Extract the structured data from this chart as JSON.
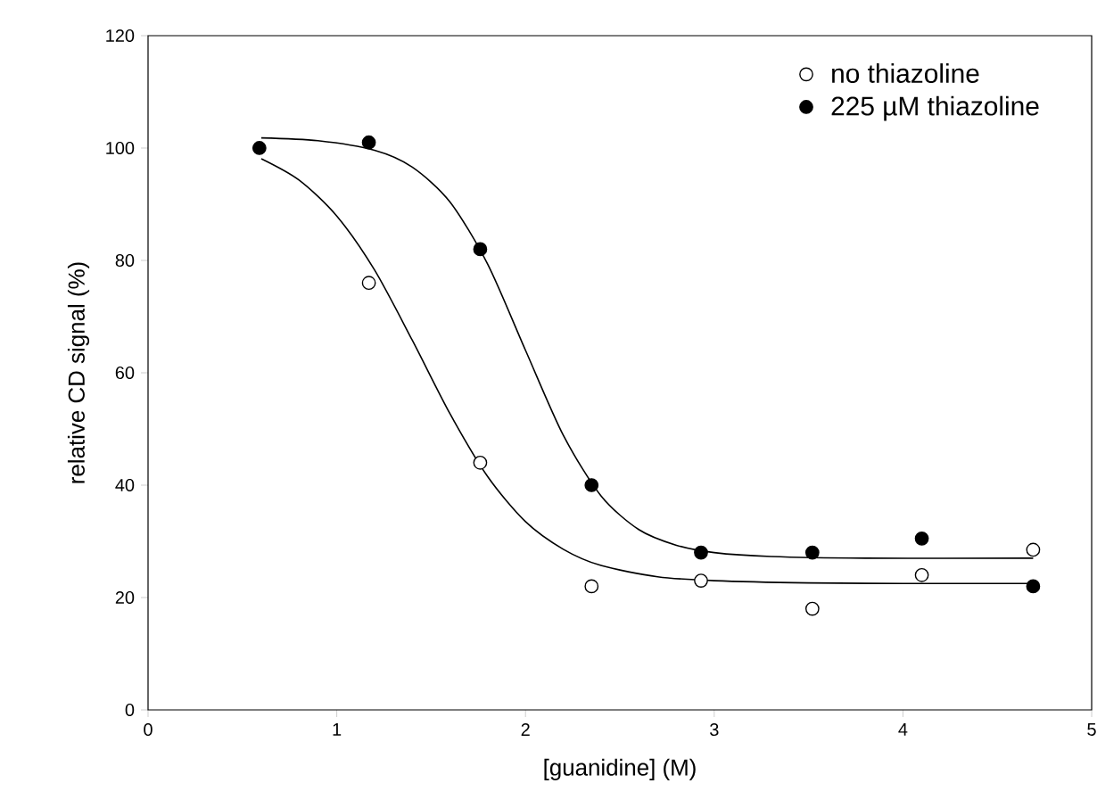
{
  "chart_data": {
    "type": "scatter",
    "xlabel": "[guanidine] (M)",
    "ylabel": "relative CD signal (%)",
    "xlim": [
      0,
      5
    ],
    "ylim": [
      0,
      120
    ],
    "xticks": [
      0,
      1,
      2,
      3,
      4,
      5
    ],
    "yticks": [
      0,
      20,
      40,
      60,
      80,
      100,
      120
    ],
    "grid": false,
    "legend": "top right",
    "series": [
      {
        "name": "no thiazoline",
        "color": "#ffffff",
        "marker": "circle",
        "x": [
          1.17,
          1.76,
          2.35,
          2.93,
          3.52,
          4.1,
          4.69
        ],
        "values": [
          76,
          44,
          22,
          23,
          18,
          24,
          28.5
        ]
      },
      {
        "name": "225 µM thiazoline",
        "color": "#000000",
        "marker": "circle",
        "x": [
          0.59,
          1.17,
          1.76,
          2.35,
          2.93,
          3.52,
          4.1,
          4.69
        ],
        "values": [
          100,
          101,
          82,
          40,
          28,
          28,
          30.5,
          22
        ]
      },
      {
        "type": "line",
        "color": "#000000",
        "marker": "none",
        "x": [
          0.6,
          0.8,
          1.0,
          1.2,
          1.4,
          1.6,
          1.8,
          2.0,
          2.2,
          2.4,
          2.7,
          3.0,
          3.5,
          4.0,
          4.69
        ],
        "values": [
          98.1,
          94.3,
          87.9,
          78.3,
          65.8,
          52.7,
          41.5,
          33.5,
          28.6,
          25.7,
          23.7,
          23.0,
          22.6,
          22.5,
          22.5
        ]
      },
      {
        "type": "line",
        "color": "#000000",
        "marker": "none",
        "x": [
          0.6,
          0.9,
          1.2,
          1.4,
          1.6,
          1.8,
          2.0,
          2.2,
          2.4,
          2.6,
          2.8,
          3.0,
          3.3,
          3.8,
          4.69
        ],
        "values": [
          101.8,
          101.3,
          99.6,
          96.6,
          90.4,
          79.3,
          64.0,
          48.9,
          38.1,
          32.1,
          29.3,
          28.0,
          27.3,
          27.0,
          27.0
        ]
      }
    ]
  }
}
